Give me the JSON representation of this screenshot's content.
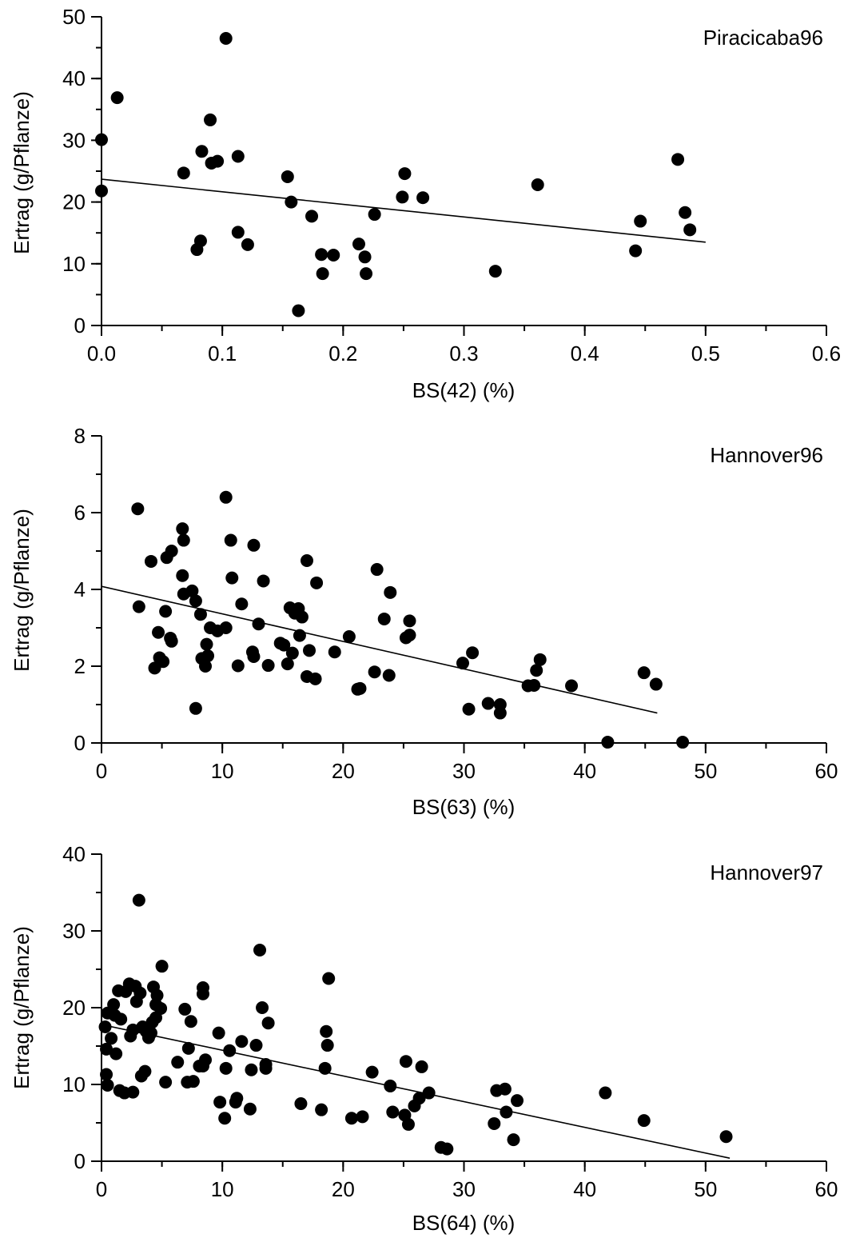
{
  "chart_data": [
    {
      "type": "scatter",
      "title": "Piracicaba96",
      "xlabel": "BS(42) (%)",
      "ylabel": "Ertrag (g/Pflanze)",
      "xlim": [
        0,
        0.6
      ],
      "ylim": [
        0,
        50
      ],
      "xticks": [
        "0.0",
        "0.1",
        "0.2",
        "0.3",
        "0.4",
        "0.5",
        "0.6"
      ],
      "yticks": [
        "0",
        "10",
        "20",
        "30",
        "40",
        "50"
      ],
      "xtick_values": [
        0,
        0.1,
        0.2,
        0.3,
        0.4,
        0.5,
        0.6
      ],
      "ytick_values": [
        0,
        10,
        20,
        30,
        40,
        50
      ],
      "x_minor_step": 0.05,
      "y_minor_step": 5,
      "grid": false,
      "trendline": {
        "x": [
          0,
          0.5
        ],
        "y": [
          23.7,
          13.5
        ]
      },
      "points": [
        [
          0.0,
          30.1
        ],
        [
          0.0,
          21.8
        ],
        [
          0.013,
          36.9
        ],
        [
          0.068,
          24.7
        ],
        [
          0.079,
          12.3
        ],
        [
          0.082,
          13.7
        ],
        [
          0.083,
          28.2
        ],
        [
          0.09,
          33.3
        ],
        [
          0.091,
          26.3
        ],
        [
          0.096,
          26.6
        ],
        [
          0.103,
          46.5
        ],
        [
          0.113,
          27.4
        ],
        [
          0.113,
          15.1
        ],
        [
          0.121,
          13.1
        ],
        [
          0.154,
          24.1
        ],
        [
          0.157,
          20.0
        ],
        [
          0.163,
          2.4
        ],
        [
          0.174,
          17.7
        ],
        [
          0.182,
          11.5
        ],
        [
          0.183,
          8.4
        ],
        [
          0.192,
          11.4
        ],
        [
          0.213,
          13.2
        ],
        [
          0.218,
          11.1
        ],
        [
          0.219,
          8.4
        ],
        [
          0.226,
          18.0
        ],
        [
          0.249,
          20.8
        ],
        [
          0.251,
          24.6
        ],
        [
          0.266,
          20.7
        ],
        [
          0.326,
          8.8
        ],
        [
          0.361,
          22.8
        ],
        [
          0.442,
          12.1
        ],
        [
          0.446,
          16.9
        ],
        [
          0.477,
          26.9
        ],
        [
          0.483,
          18.3
        ],
        [
          0.487,
          15.5
        ]
      ]
    },
    {
      "type": "scatter",
      "title": "Hannover96",
      "xlabel": "BS(63) (%)",
      "ylabel": "Ertrag (g/Pflanze)",
      "xlim": [
        0,
        60
      ],
      "ylim": [
        0,
        8
      ],
      "xticks": [
        "0",
        "10",
        "20",
        "30",
        "40",
        "50",
        "60"
      ],
      "yticks": [
        "0",
        "2",
        "4",
        "6",
        "8"
      ],
      "xtick_values": [
        0,
        10,
        20,
        30,
        40,
        50,
        60
      ],
      "ytick_values": [
        0,
        2,
        4,
        6,
        8
      ],
      "x_minor_step": 5,
      "y_minor_step": 1,
      "grid": false,
      "trendline": {
        "x": [
          0,
          46
        ],
        "y": [
          4.08,
          0.78
        ]
      },
      "points": [
        [
          3.0,
          6.1
        ],
        [
          3.1,
          3.55
        ],
        [
          4.1,
          4.73
        ],
        [
          4.4,
          1.95
        ],
        [
          4.7,
          2.88
        ],
        [
          4.8,
          2.22
        ],
        [
          5.1,
          2.12
        ],
        [
          5.3,
          3.43
        ],
        [
          5.4,
          4.83
        ],
        [
          5.7,
          2.73
        ],
        [
          5.8,
          5.0
        ],
        [
          5.8,
          2.65
        ],
        [
          6.7,
          5.58
        ],
        [
          6.7,
          4.36
        ],
        [
          6.8,
          5.28
        ],
        [
          6.8,
          3.88
        ],
        [
          7.5,
          3.96
        ],
        [
          7.8,
          3.7
        ],
        [
          7.8,
          0.9
        ],
        [
          8.2,
          3.35
        ],
        [
          8.3,
          2.2
        ],
        [
          8.6,
          2.0
        ],
        [
          8.7,
          2.57
        ],
        [
          8.8,
          2.27
        ],
        [
          9.0,
          3.0
        ],
        [
          9.6,
          2.92
        ],
        [
          10.3,
          6.4
        ],
        [
          10.3,
          3.0
        ],
        [
          10.7,
          5.28
        ],
        [
          10.8,
          4.3
        ],
        [
          11.3,
          2.01
        ],
        [
          11.6,
          3.62
        ],
        [
          12.5,
          2.37
        ],
        [
          12.6,
          2.25
        ],
        [
          12.6,
          5.15
        ],
        [
          13.0,
          3.1
        ],
        [
          13.4,
          4.22
        ],
        [
          13.8,
          2.02
        ],
        [
          14.8,
          2.6
        ],
        [
          15.1,
          2.55
        ],
        [
          15.4,
          2.06
        ],
        [
          15.6,
          3.52
        ],
        [
          15.8,
          2.34
        ],
        [
          16.0,
          3.38
        ],
        [
          16.3,
          3.5
        ],
        [
          16.4,
          2.8
        ],
        [
          16.6,
          3.28
        ],
        [
          17.0,
          1.73
        ],
        [
          17.0,
          4.75
        ],
        [
          17.2,
          2.41
        ],
        [
          17.7,
          1.67
        ],
        [
          17.8,
          4.17
        ],
        [
          19.3,
          2.37
        ],
        [
          20.5,
          2.77
        ],
        [
          21.2,
          1.4
        ],
        [
          21.4,
          1.42
        ],
        [
          22.6,
          1.85
        ],
        [
          22.8,
          4.52
        ],
        [
          23.4,
          3.23
        ],
        [
          23.8,
          1.76
        ],
        [
          23.9,
          3.92
        ],
        [
          25.2,
          2.74
        ],
        [
          25.5,
          3.18
        ],
        [
          25.5,
          2.81
        ],
        [
          29.9,
          2.08
        ],
        [
          30.4,
          0.88
        ],
        [
          30.7,
          2.35
        ],
        [
          32.0,
          1.03
        ],
        [
          33.0,
          0.78
        ],
        [
          33.0,
          1.0
        ],
        [
          35.3,
          1.49
        ],
        [
          35.8,
          1.5
        ],
        [
          36.0,
          1.89
        ],
        [
          36.3,
          2.17
        ],
        [
          38.9,
          1.49
        ],
        [
          41.9,
          0.02
        ],
        [
          44.9,
          1.83
        ],
        [
          45.9,
          1.53
        ],
        [
          48.1,
          0.02
        ]
      ]
    },
    {
      "type": "scatter",
      "title": "Hannover97",
      "xlabel": "BS(64) (%)",
      "ylabel": "Ertrag (g/Pflanze)",
      "xlim": [
        0,
        60
      ],
      "ylim": [
        0,
        40
      ],
      "xticks": [
        "0",
        "10",
        "20",
        "30",
        "40",
        "50",
        "60"
      ],
      "yticks": [
        "0",
        "10",
        "20",
        "30",
        "40"
      ],
      "xtick_values": [
        0,
        10,
        20,
        30,
        40,
        50,
        60
      ],
      "ytick_values": [
        0,
        10,
        20,
        30,
        40
      ],
      "x_minor_step": 5,
      "y_minor_step": 5,
      "grid": false,
      "trendline": {
        "x": [
          0,
          52
        ],
        "y": [
          17.8,
          0.4
        ]
      },
      "points": [
        [
          0.3,
          17.5
        ],
        [
          0.4,
          11.3
        ],
        [
          0.4,
          14.6
        ],
        [
          0.5,
          9.9
        ],
        [
          0.5,
          19.3
        ],
        [
          0.8,
          16.0
        ],
        [
          1.0,
          20.4
        ],
        [
          1.1,
          19.0
        ],
        [
          1.2,
          14.0
        ],
        [
          1.4,
          22.2
        ],
        [
          1.5,
          9.2
        ],
        [
          1.6,
          18.5
        ],
        [
          1.9,
          8.9
        ],
        [
          2.0,
          22.1
        ],
        [
          2.3,
          23.1
        ],
        [
          2.4,
          16.3
        ],
        [
          2.6,
          17.1
        ],
        [
          2.6,
          9.0
        ],
        [
          2.8,
          22.8
        ],
        [
          2.9,
          20.8
        ],
        [
          3.1,
          34.0
        ],
        [
          3.2,
          21.9
        ],
        [
          3.3,
          11.1
        ],
        [
          3.4,
          17.5
        ],
        [
          3.6,
          11.7
        ],
        [
          3.7,
          16.9
        ],
        [
          3.9,
          16.1
        ],
        [
          4.1,
          16.7
        ],
        [
          4.2,
          18.1
        ],
        [
          4.3,
          22.7
        ],
        [
          4.5,
          18.7
        ],
        [
          4.5,
          20.4
        ],
        [
          4.6,
          21.6
        ],
        [
          4.9,
          19.9
        ],
        [
          5.0,
          25.4
        ],
        [
          5.3,
          10.3
        ],
        [
          6.3,
          12.9
        ],
        [
          6.9,
          19.8
        ],
        [
          7.1,
          10.3
        ],
        [
          7.2,
          14.7
        ],
        [
          7.4,
          18.2
        ],
        [
          7.6,
          10.4
        ],
        [
          8.1,
          12.4
        ],
        [
          8.4,
          22.6
        ],
        [
          8.4,
          21.8
        ],
        [
          8.4,
          12.4
        ],
        [
          8.6,
          13.2
        ],
        [
          9.7,
          16.7
        ],
        [
          9.8,
          7.7
        ],
        [
          10.2,
          5.6
        ],
        [
          10.3,
          12.1
        ],
        [
          10.6,
          14.4
        ],
        [
          11.1,
          7.7
        ],
        [
          11.2,
          8.2
        ],
        [
          11.6,
          15.6
        ],
        [
          12.3,
          6.8
        ],
        [
          12.4,
          11.9
        ],
        [
          12.8,
          15.1
        ],
        [
          13.1,
          27.5
        ],
        [
          13.3,
          20.0
        ],
        [
          13.6,
          12.6
        ],
        [
          13.6,
          12.1
        ],
        [
          13.8,
          18.0
        ],
        [
          16.5,
          7.5
        ],
        [
          18.2,
          6.7
        ],
        [
          18.5,
          12.1
        ],
        [
          18.6,
          16.9
        ],
        [
          18.7,
          15.1
        ],
        [
          18.8,
          23.8
        ],
        [
          20.7,
          5.6
        ],
        [
          21.6,
          5.8
        ],
        [
          22.4,
          11.6
        ],
        [
          23.9,
          9.8
        ],
        [
          24.1,
          6.4
        ],
        [
          25.1,
          6.0
        ],
        [
          25.2,
          13.0
        ],
        [
          25.4,
          4.8
        ],
        [
          25.9,
          7.2
        ],
        [
          26.3,
          8.2
        ],
        [
          26.5,
          12.3
        ],
        [
          27.1,
          8.9
        ],
        [
          28.1,
          1.8
        ],
        [
          28.6,
          1.6
        ],
        [
          32.5,
          4.9
        ],
        [
          32.7,
          9.2
        ],
        [
          33.4,
          9.4
        ],
        [
          33.5,
          6.4
        ],
        [
          34.1,
          2.8
        ],
        [
          34.4,
          7.9
        ],
        [
          41.7,
          8.9
        ],
        [
          44.9,
          5.3
        ],
        [
          51.7,
          3.2
        ]
      ]
    }
  ]
}
